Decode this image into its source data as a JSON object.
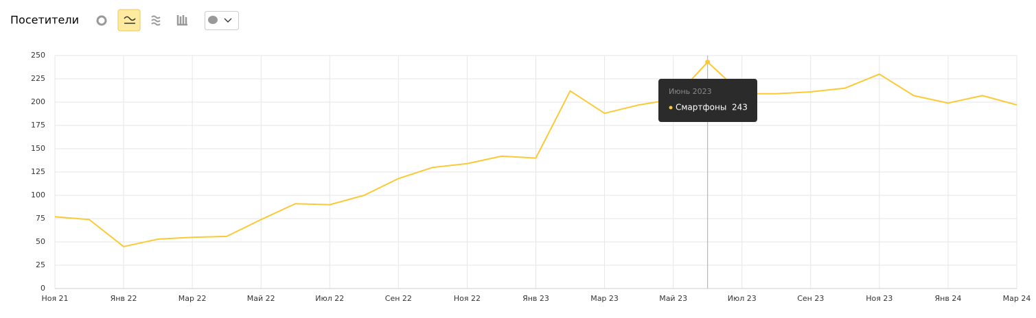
{
  "chart_data": {
    "type": "line",
    "title": "Посетители",
    "categories": [
      "Ноя 21",
      null,
      "Янв 22",
      null,
      "Мар 22",
      null,
      "Май 22",
      null,
      "Июл 22",
      null,
      "Сен 22",
      null,
      "Ноя 22",
      null,
      "Янв 23",
      null,
      "Мар 23",
      null,
      "Май 23",
      null,
      "Июл 23",
      null,
      "Сен 23",
      null,
      "Ноя 23",
      null,
      "Янв 24",
      null,
      "Мар 24"
    ],
    "series": [
      {
        "name": "Смартфоны",
        "color": "#fcc934",
        "values": [
          77,
          74,
          45,
          53,
          55,
          56,
          74,
          91,
          90,
          100,
          118,
          130,
          134,
          142,
          140,
          212,
          188,
          197,
          203,
          243,
          209,
          209,
          211,
          215,
          230,
          207,
          199,
          207,
          197
        ]
      }
    ],
    "ylim": [
      0,
      250
    ],
    "yticks": [
      0,
      25,
      50,
      75,
      100,
      125,
      150,
      175,
      200,
      225,
      250
    ],
    "grid": true,
    "tooltip": {
      "title": "Июнь 2023"
    }
  }
}
